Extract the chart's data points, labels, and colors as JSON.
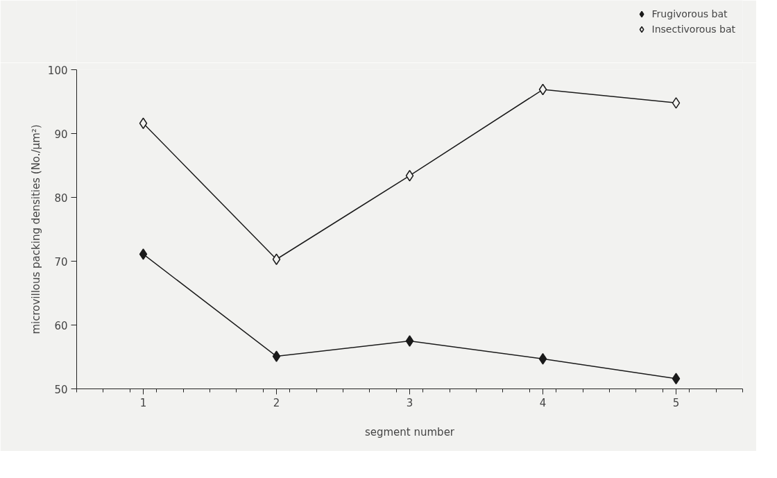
{
  "chart_data": {
    "type": "line",
    "xlabel": "segment number",
    "ylabel": "microvillous packing densities (No./µm²)",
    "x": [
      1,
      2,
      3,
      4,
      5
    ],
    "xlim": [
      0.5,
      5.5
    ],
    "xticks": [
      1,
      2,
      3,
      4,
      5
    ],
    "ylim": [
      50,
      100
    ],
    "yticks": [
      50,
      60,
      70,
      80,
      90,
      100
    ],
    "series": [
      {
        "name": "Frugivorous bat",
        "color": "#1a1a1a",
        "marker": "diamond",
        "values": [
          71.1,
          55.1,
          57.5,
          54.7,
          51.6
        ]
      },
      {
        "name": "Insectivorous bat",
        "color": "#1a1a1a",
        "marker": "diamond",
        "values": [
          91.6,
          70.3,
          83.4,
          96.9,
          94.8
        ]
      }
    ],
    "legend": "top right",
    "grid": false,
    "line_style": "solid"
  }
}
